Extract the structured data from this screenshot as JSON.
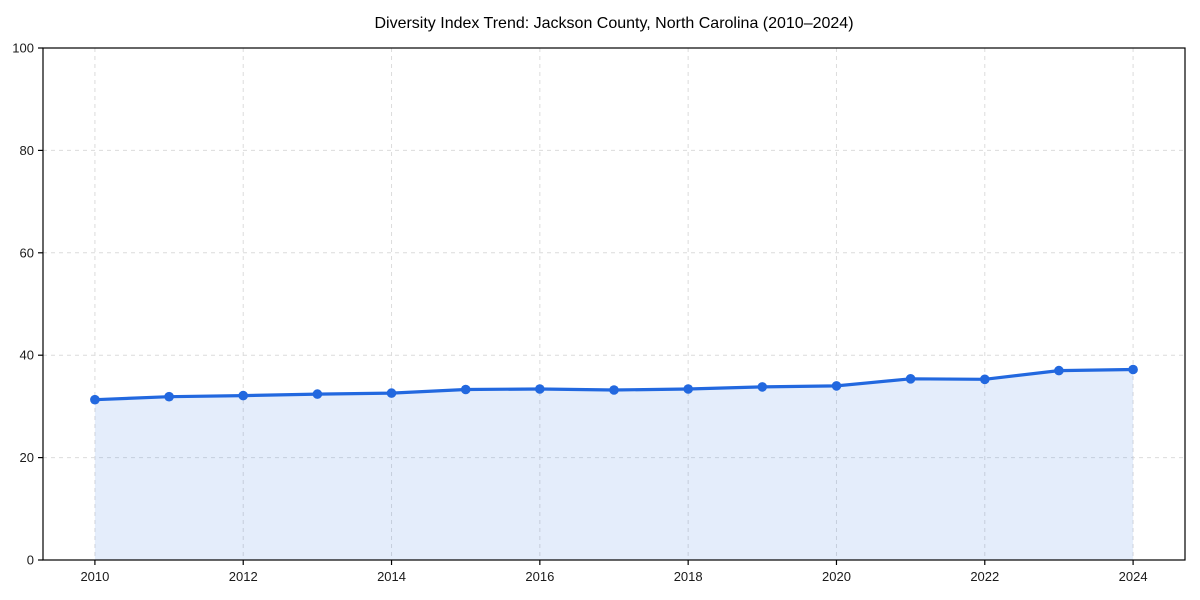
{
  "chart_data": {
    "type": "area",
    "title": "Diversity Index Trend: Jackson County, North Carolina (2010–2024)",
    "xlabel": "",
    "ylabel": "",
    "x": [
      2010,
      2011,
      2012,
      2013,
      2014,
      2015,
      2016,
      2017,
      2018,
      2019,
      2020,
      2021,
      2022,
      2023,
      2024
    ],
    "series": [
      {
        "name": "Diversity Index",
        "values": [
          31.3,
          31.9,
          32.1,
          32.4,
          32.6,
          33.3,
          33.4,
          33.2,
          33.4,
          33.8,
          34.0,
          35.4,
          35.3,
          37.0,
          37.2
        ]
      }
    ],
    "xlim": [
      2009.3,
      2024.7
    ],
    "ylim": [
      0,
      100
    ],
    "xticks": [
      2010,
      2012,
      2014,
      2016,
      2018,
      2020,
      2022,
      2024
    ],
    "yticks": [
      0,
      20,
      40,
      60,
      80,
      100
    ],
    "grid": true,
    "grid_style": "dashed",
    "legend": false,
    "colors": {
      "line": "#2268df",
      "marker": "#2268df",
      "fill": "#2268df",
      "fill_opacity": 0.12,
      "grid": "#dcdcdc",
      "spine": "#000000",
      "text": "#000000",
      "background": "#ffffff"
    }
  }
}
